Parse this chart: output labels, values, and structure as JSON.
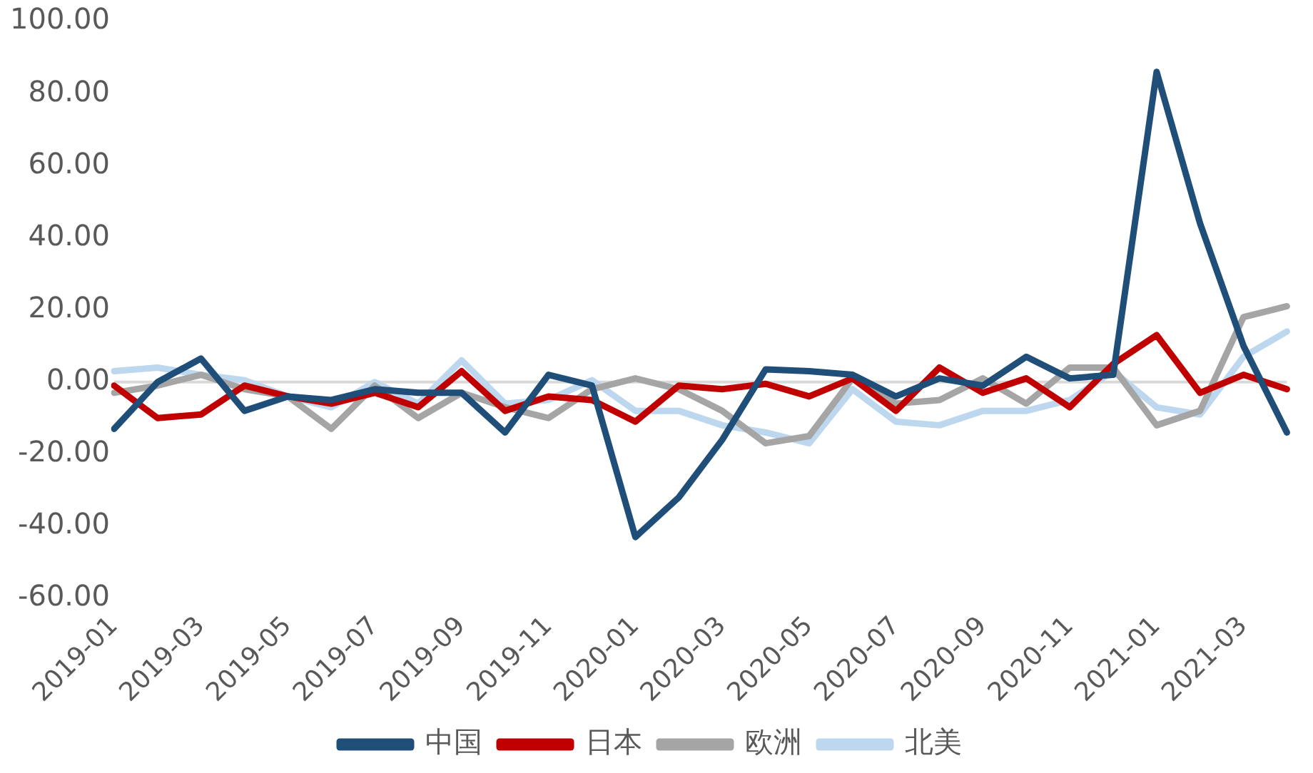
{
  "chart_data": {
    "type": "line",
    "categories": [
      "2019-01",
      null,
      "2019-03",
      null,
      "2019-05",
      null,
      "2019-07",
      null,
      "2019-09",
      null,
      "2019-11",
      null,
      "2020-01",
      null,
      "2020-03",
      null,
      "2020-05",
      null,
      "2020-07",
      null,
      "2020-09",
      null,
      "2020-11",
      null,
      "2021-01",
      null,
      "2021-03",
      null
    ],
    "series": [
      {
        "name": "中国",
        "color": "#1f4e79",
        "values": [
          -13,
          0,
          6.5,
          -8,
          -4,
          -5,
          -2,
          -3,
          -3,
          -14,
          2,
          -1,
          -43,
          -32,
          -16,
          3.5,
          3,
          2,
          -4,
          1,
          -1,
          7,
          1,
          2,
          86,
          44,
          10,
          -14
        ]
      },
      {
        "name": "日本",
        "color": "#c00000",
        "values": [
          -1,
          -10,
          -9,
          -1,
          -4,
          -6,
          -3,
          -7,
          3,
          -8,
          -4,
          -5,
          -11,
          -1,
          -2,
          -0.5,
          -4,
          1,
          -8,
          4,
          -3,
          1,
          -7,
          5,
          13,
          -3,
          2,
          -2
        ]
      },
      {
        "name": "欧洲",
        "color": "#a5a5a5",
        "values": [
          -3,
          -1,
          2,
          -2,
          -4,
          -13,
          -1,
          -10,
          -3,
          -7,
          -10,
          -2,
          1,
          -2,
          -8,
          -17,
          -15,
          1,
          -6,
          -5,
          1,
          -6,
          4,
          4,
          -12,
          -8,
          18,
          21
        ]
      },
      {
        "name": "北美",
        "color": "#bdd7ee",
        "values": [
          3,
          4,
          2,
          0.5,
          -4,
          -7,
          0,
          -6,
          6,
          -6,
          -5,
          0.5,
          -8,
          -8,
          -12,
          -14,
          -17,
          -2,
          -11,
          -12,
          -8,
          -8,
          -5,
          3,
          -7,
          -9,
          7,
          14
        ]
      }
    ],
    "ylim": [
      -60,
      100
    ],
    "yticks": [
      {
        "value": -60,
        "label": "-60.00"
      },
      {
        "value": -40,
        "label": "-40.00"
      },
      {
        "value": -20,
        "label": "-20.00"
      },
      {
        "value": 0,
        "label": "0.00"
      },
      {
        "value": 20,
        "label": "20.00"
      },
      {
        "value": 40,
        "label": "40.00"
      },
      {
        "value": 60,
        "label": "60.00"
      },
      {
        "value": 80,
        "label": "80.00"
      },
      {
        "value": 100,
        "label": "100.00"
      }
    ],
    "ref_lines": [
      {
        "axis": "y",
        "value": 0,
        "color": "#d9d9d9"
      }
    ],
    "grid": false,
    "legend": "bottom",
    "marker": "none",
    "line_style": "solid"
  }
}
